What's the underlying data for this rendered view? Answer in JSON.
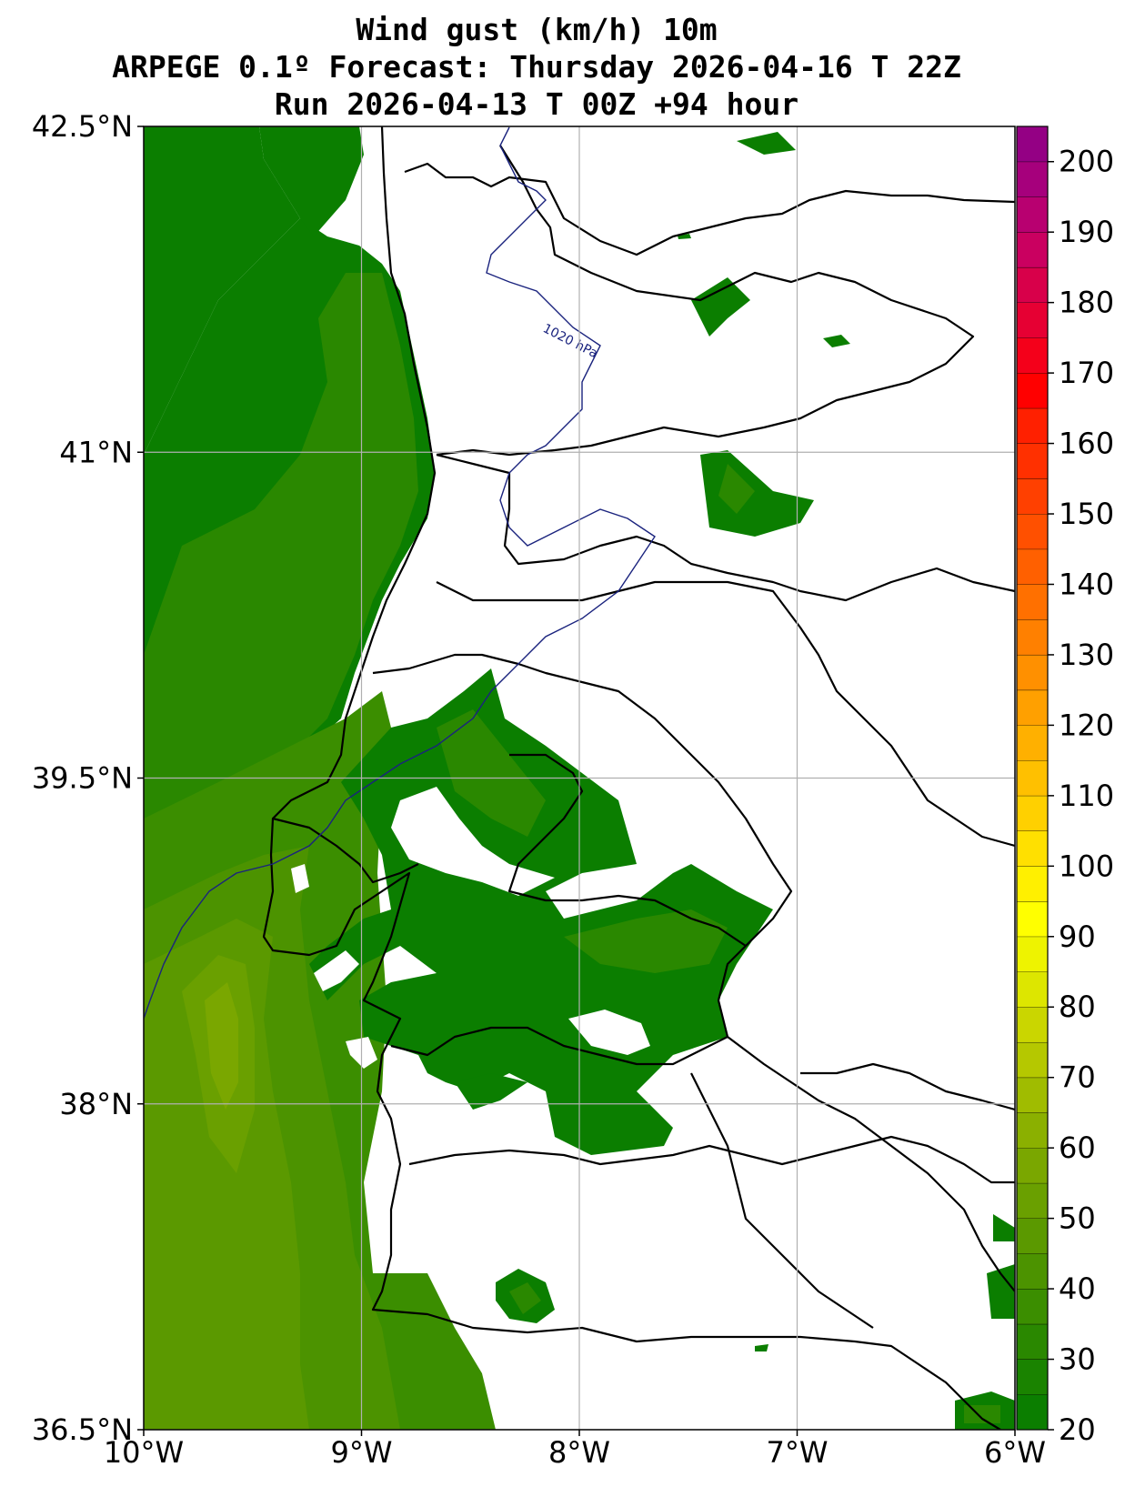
{
  "title": {
    "line1": "Wind gust (km/h) 10m",
    "line2": "ARPEGE 0.1º Forecast: Thursday 2026-04-16 T 22Z",
    "line3": "Run 2026-04-13 T 00Z +94 hour"
  },
  "map": {
    "lon_range": [
      -10,
      -6
    ],
    "lat_range": [
      36.5,
      42.5
    ],
    "lon_ticks": [
      {
        "value": -10,
        "label": "10°W"
      },
      {
        "value": -9,
        "label": "9°W"
      },
      {
        "value": -8,
        "label": "8°W"
      },
      {
        "value": -7,
        "label": "7°W"
      },
      {
        "value": -6,
        "label": "6°W"
      }
    ],
    "lat_ticks": [
      {
        "value": 42.5,
        "label": "42.5°N"
      },
      {
        "value": 41,
        "label": "41°N"
      },
      {
        "value": 39.5,
        "label": "39.5°N"
      },
      {
        "value": 38,
        "label": "38°N"
      },
      {
        "value": 36.5,
        "label": "36.5°N"
      }
    ],
    "isobar_label": "1020 hPa",
    "grid": true
  },
  "colorbar": {
    "min": 20,
    "max": 205,
    "step": 5,
    "tick_values": [
      20,
      30,
      40,
      50,
      60,
      70,
      80,
      90,
      100,
      110,
      120,
      130,
      140,
      150,
      160,
      170,
      180,
      190,
      200
    ],
    "colors": [
      "#0b7e00",
      "#1a8300",
      "#2a8800",
      "#3b8e00",
      "#4c9300",
      "#5b9900",
      "#6aa000",
      "#7aa700",
      "#8bb000",
      "#a0bc00",
      "#b5c800",
      "#cad600",
      "#dde600",
      "#eef300",
      "#ffff00",
      "#fff000",
      "#ffe000",
      "#ffd000",
      "#ffc000",
      "#ffb000",
      "#ffa000",
      "#ff9000",
      "#ff8000",
      "#ff7000",
      "#ff6000",
      "#ff5000",
      "#ff4000",
      "#ff3000",
      "#ff2000",
      "#ff0000",
      "#f4001a",
      "#e60033",
      "#d8004a",
      "#ca0060",
      "#b80070",
      "#a6007c",
      "#940084"
    ]
  }
}
